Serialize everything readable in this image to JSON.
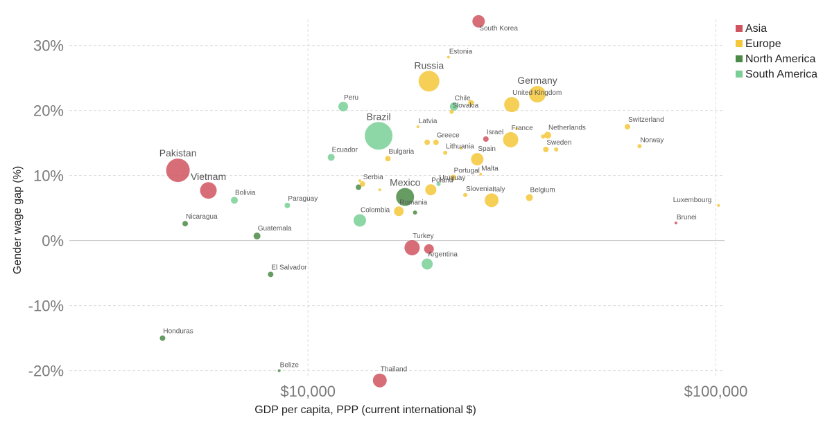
{
  "chart_data": {
    "type": "scatter",
    "xlabel": "GDP per capita, PPP (current international $)",
    "ylabel": "Gender wage gap (%)",
    "x_scale": "log",
    "xlim": [
      2600,
      105000
    ],
    "ylim": [
      -21,
      34
    ],
    "x_ticks": [
      {
        "value": 10000,
        "label": "$10,000"
      },
      {
        "value": 100000,
        "label": "$100,000"
      }
    ],
    "y_ticks": [
      {
        "value": 30,
        "label": "30%"
      },
      {
        "value": 20,
        "label": "20%"
      },
      {
        "value": 10,
        "label": "10%"
      },
      {
        "value": 0,
        "label": "0%"
      },
      {
        "value": -10,
        "label": "-10%"
      },
      {
        "value": -20,
        "label": "-20%"
      }
    ],
    "grid": true,
    "legend_position": "top-right",
    "series": [
      {
        "name": "Asia",
        "color": "#d0545f",
        "points": [
          {
            "label": "South Korea",
            "x": 26200,
            "y": 33.7,
            "size": 9
          },
          {
            "label": "Pakistan",
            "x": 4800,
            "y": 10.8,
            "size": 17
          },
          {
            "label": "Vietnam",
            "x": 5700,
            "y": 7.7,
            "size": 12
          },
          {
            "label": "Israel",
            "x": 27300,
            "y": 15.6,
            "size": 4
          },
          {
            "label": "Turkey",
            "x": 18000,
            "y": -1.1,
            "size": 11
          },
          {
            "label": "",
            "x": 19800,
            "y": -1.3,
            "size": 7
          },
          {
            "label": "Thailand",
            "x": 15000,
            "y": -21.5,
            "size": 10
          },
          {
            "label": "Brunei",
            "x": 79800,
            "y": 2.7,
            "size": 2
          }
        ]
      },
      {
        "name": "Europe",
        "color": "#f5c73a",
        "points": [
          {
            "label": "Russia",
            "x": 19800,
            "y": 24.5,
            "size": 15
          },
          {
            "label": "Estonia",
            "x": 22100,
            "y": 28.2,
            "size": 2
          },
          {
            "label": "Germany",
            "x": 36500,
            "y": 22.5,
            "size": 12
          },
          {
            "label": "United Kingdom",
            "x": 31600,
            "y": 20.9,
            "size": 11
          },
          {
            "label": "Slovakia",
            "x": 22500,
            "y": 19.8,
            "size": 3
          },
          {
            "label": "",
            "x": 25100,
            "y": 21.2,
            "size": 4
          },
          {
            "label": "Latvia",
            "x": 18600,
            "y": 17.5,
            "size": 2
          },
          {
            "label": "France",
            "x": 31400,
            "y": 15.5,
            "size": 11
          },
          {
            "label": "",
            "x": 32500,
            "y": 17.2,
            "size": 2
          },
          {
            "label": "Netherlands",
            "x": 38700,
            "y": 16.2,
            "size": 5
          },
          {
            "label": "",
            "x": 37700,
            "y": 16.0,
            "size": 3
          },
          {
            "label": "Switzerland",
            "x": 60700,
            "y": 17.5,
            "size": 4
          },
          {
            "label": "Greece",
            "x": 20600,
            "y": 15.1,
            "size": 4
          },
          {
            "label": "",
            "x": 19600,
            "y": 15.1,
            "size": 4
          },
          {
            "label": "Lithuania",
            "x": 21700,
            "y": 13.5,
            "size": 3
          },
          {
            "label": "",
            "x": 23700,
            "y": 14.2,
            "size": 2
          },
          {
            "label": "Sweden",
            "x": 38300,
            "y": 14.0,
            "size": 4
          },
          {
            "label": "",
            "x": 40600,
            "y": 14.0,
            "size": 3
          },
          {
            "label": "Norway",
            "x": 65000,
            "y": 14.5,
            "size": 3
          },
          {
            "label": "Spain",
            "x": 26000,
            "y": 12.5,
            "size": 9
          },
          {
            "label": "Bulgaria",
            "x": 15700,
            "y": 12.6,
            "size": 4
          },
          {
            "label": "Portugal",
            "x": 22700,
            "y": 9.7,
            "size": 4
          },
          {
            "label": "Malta",
            "x": 26500,
            "y": 10.2,
            "size": 2
          },
          {
            "label": "Serbia",
            "x": 13600,
            "y": 8.7,
            "size": 4
          },
          {
            "label": "",
            "x": 13400,
            "y": 9.2,
            "size": 2
          },
          {
            "label": "",
            "x": 15000,
            "y": 7.8,
            "size": 2
          },
          {
            "label": "Poland",
            "x": 20000,
            "y": 7.8,
            "size": 8
          },
          {
            "label": "Slovenia",
            "x": 24300,
            "y": 7.0,
            "size": 3
          },
          {
            "label": "Italy",
            "x": 28200,
            "y": 6.2,
            "size": 10
          },
          {
            "label": "Belgium",
            "x": 34900,
            "y": 6.6,
            "size": 5
          },
          {
            "label": "Romania",
            "x": 16700,
            "y": 4.5,
            "size": 7
          },
          {
            "label": "Luxembourg",
            "x": 101500,
            "y": 5.4,
            "size": 2
          }
        ]
      },
      {
        "name": "North America",
        "color": "#4b8b47",
        "points": [
          {
            "label": "Mexico",
            "x": 17300,
            "y": 6.7,
            "size": 13
          },
          {
            "label": "",
            "x": 13300,
            "y": 8.2,
            "size": 4
          },
          {
            "label": "",
            "x": 18300,
            "y": 4.3,
            "size": 3
          },
          {
            "label": "Nicaragua",
            "x": 5000,
            "y": 2.6,
            "size": 4
          },
          {
            "label": "Guatemala",
            "x": 7500,
            "y": 0.7,
            "size": 5
          },
          {
            "label": "El Salvador",
            "x": 8100,
            "y": -5.2,
            "size": 4
          },
          {
            "label": "Honduras",
            "x": 4400,
            "y": -15.0,
            "size": 4
          },
          {
            "label": "Belize",
            "x": 8500,
            "y": -20.0,
            "size": 2
          }
        ]
      },
      {
        "name": "South America",
        "color": "#79cf95",
        "points": [
          {
            "label": "Brazil",
            "x": 14900,
            "y": 16.1,
            "size": 20
          },
          {
            "label": "Peru",
            "x": 12200,
            "y": 20.6,
            "size": 7
          },
          {
            "label": "Chile",
            "x": 22800,
            "y": 20.6,
            "size": 6
          },
          {
            "label": "Ecuador",
            "x": 11400,
            "y": 12.8,
            "size": 5
          },
          {
            "label": "Bolivia",
            "x": 6600,
            "y": 6.2,
            "size": 5
          },
          {
            "label": "Paraguay",
            "x": 8900,
            "y": 5.4,
            "size": 4
          },
          {
            "label": "Uruguay",
            "x": 20900,
            "y": 8.7,
            "size": 3
          },
          {
            "label": "Colombia",
            "x": 13400,
            "y": 3.1,
            "size": 9
          },
          {
            "label": "Argentina",
            "x": 19600,
            "y": -3.6,
            "size": 8
          }
        ]
      }
    ]
  }
}
